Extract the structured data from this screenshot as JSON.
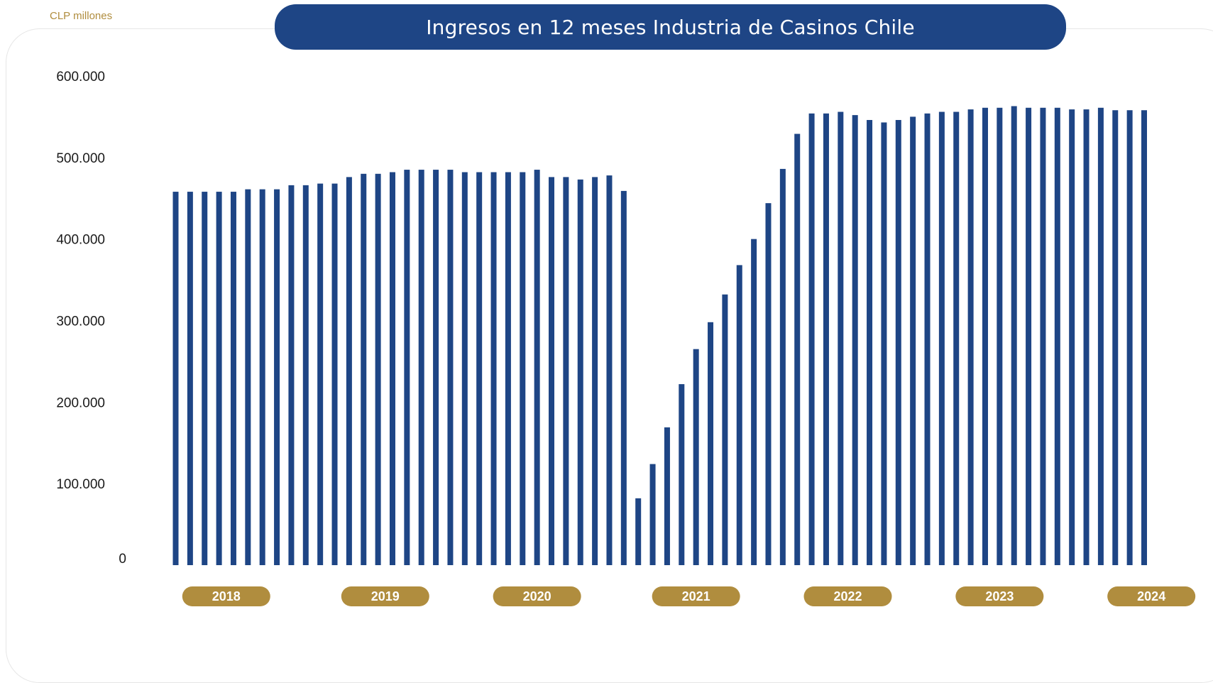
{
  "header": {
    "unit": "CLP millones",
    "title": "Ingresos en 12 meses Industria de Casinos Chile"
  },
  "colors": {
    "bar": "#1e4585",
    "banner": "#1e4585",
    "year_pill": "#b08d3e",
    "unit_text": "#b08d3e"
  },
  "chart_data": {
    "type": "bar",
    "title": "Ingresos en 12 meses Industria de Casinos Chile",
    "ylabel": "CLP millones",
    "ylim": [
      0,
      600000
    ],
    "y_ticks": [
      {
        "value": 0,
        "label": "0"
      },
      {
        "value": 100000,
        "label": "100.000"
      },
      {
        "value": 200000,
        "label": "200.000"
      },
      {
        "value": 300000,
        "label": "300.000"
      },
      {
        "value": 400000,
        "label": "400.000"
      },
      {
        "value": 500000,
        "label": "500.000"
      },
      {
        "value": 600000,
        "label": "600.000"
      }
    ],
    "year_labels": [
      {
        "label": "2018",
        "center_index": 3.5
      },
      {
        "label": "2019",
        "center_index": 14.5
      },
      {
        "label": "2020",
        "center_index": 25
      },
      {
        "label": "2021",
        "center_index": 36
      },
      {
        "label": "2022",
        "center_index": 46.5
      },
      {
        "label": "2023",
        "center_index": 57
      },
      {
        "label": "2024",
        "center_index": 67.5
      }
    ],
    "values": [
      458000,
      458000,
      458000,
      458000,
      458000,
      461000,
      461000,
      461000,
      466000,
      466000,
      468000,
      468000,
      476000,
      480000,
      480000,
      482000,
      485000,
      485000,
      485000,
      485000,
      482000,
      482000,
      482000,
      482000,
      482000,
      485000,
      476000,
      476000,
      473000,
      476000,
      478000,
      459000,
      82000,
      124000,
      169000,
      222000,
      265000,
      298000,
      332000,
      368000,
      400000,
      444000,
      486000,
      529000,
      554000,
      554000,
      556000,
      552000,
      546000,
      543000,
      546000,
      550000,
      554000,
      556000,
      556000,
      559000,
      561000,
      561000,
      563000,
      561000,
      561000,
      561000,
      559000,
      559000,
      561000,
      558000,
      558000,
      558000
    ]
  }
}
